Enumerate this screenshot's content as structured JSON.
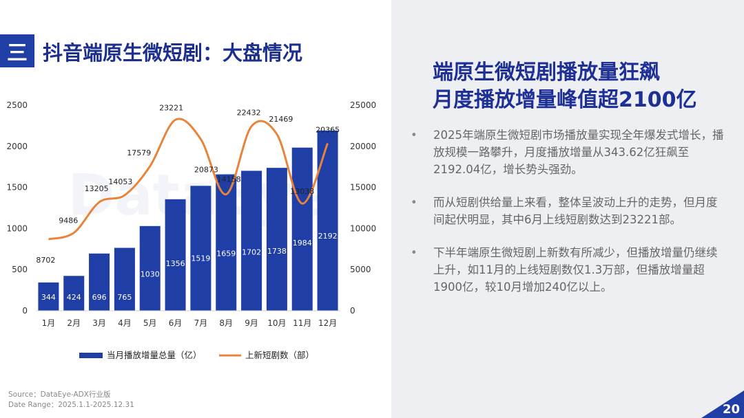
{
  "section": {
    "badge": "三",
    "title": "抖音端原生微短剧：大盘情况"
  },
  "headline": {
    "line1": "端原生微短剧播放量狂飙",
    "line2": "月度播放增量峰值超2100亿"
  },
  "bullets": [
    "2025年端原生微短剧市场播放量实现全年爆发式增长，播放规模一路攀升，月度播放增量从343.62亿狂飙至2192.04亿，增长势头强劲。",
    "而从短剧供给量上来看，整体呈波动上升的走势，但月度间起伏明显，其中6月上线短剧数达到23221部。",
    "下半年端原生微短剧上新数有所减少，但播放增量仍继续上升，如11月的上线短剧数仅1.3万部，但播放增量超1900亿，较10月增加240亿以上。"
  ],
  "bullet_marker": "•",
  "source": {
    "line1": "Source：DataEye-ADX行业版",
    "line2": "Date Range：2025.1.1-2025.12.31"
  },
  "page_number": "20",
  "colors": {
    "bar": "#1f3ea6",
    "line": "#e8843a",
    "title": "#1c2f8c",
    "accent": "#1e2f96"
  },
  "chart_data": {
    "type": "bar",
    "categories": [
      "1月",
      "2月",
      "3月",
      "4月",
      "5月",
      "6月",
      "7月",
      "8月",
      "9月",
      "10月",
      "11月",
      "12月"
    ],
    "series": [
      {
        "name": "当月播放增量总量（亿）",
        "type": "bar",
        "axis": "left",
        "values": [
          344,
          424,
          696,
          765,
          1030,
          1356,
          1519,
          1659,
          1702,
          1738,
          1984,
          2192
        ]
      },
      {
        "name": "上新短剧数（部）",
        "type": "line",
        "axis": "right",
        "values": [
          8702,
          9486,
          13205,
          14053,
          17579,
          23221,
          20873,
          14158,
          22432,
          21469,
          13038,
          20365
        ]
      }
    ],
    "ylim_left": [
      0,
      2500
    ],
    "ylim_right": [
      0,
      25000
    ],
    "yticks_left": [
      "0",
      "500",
      "1000",
      "1500",
      "2000",
      "2500"
    ],
    "yticks_right": [
      "0",
      "5000",
      "10000",
      "15000",
      "20000",
      "25000"
    ],
    "legend_position": "bottom",
    "watermark": "DataEye"
  }
}
